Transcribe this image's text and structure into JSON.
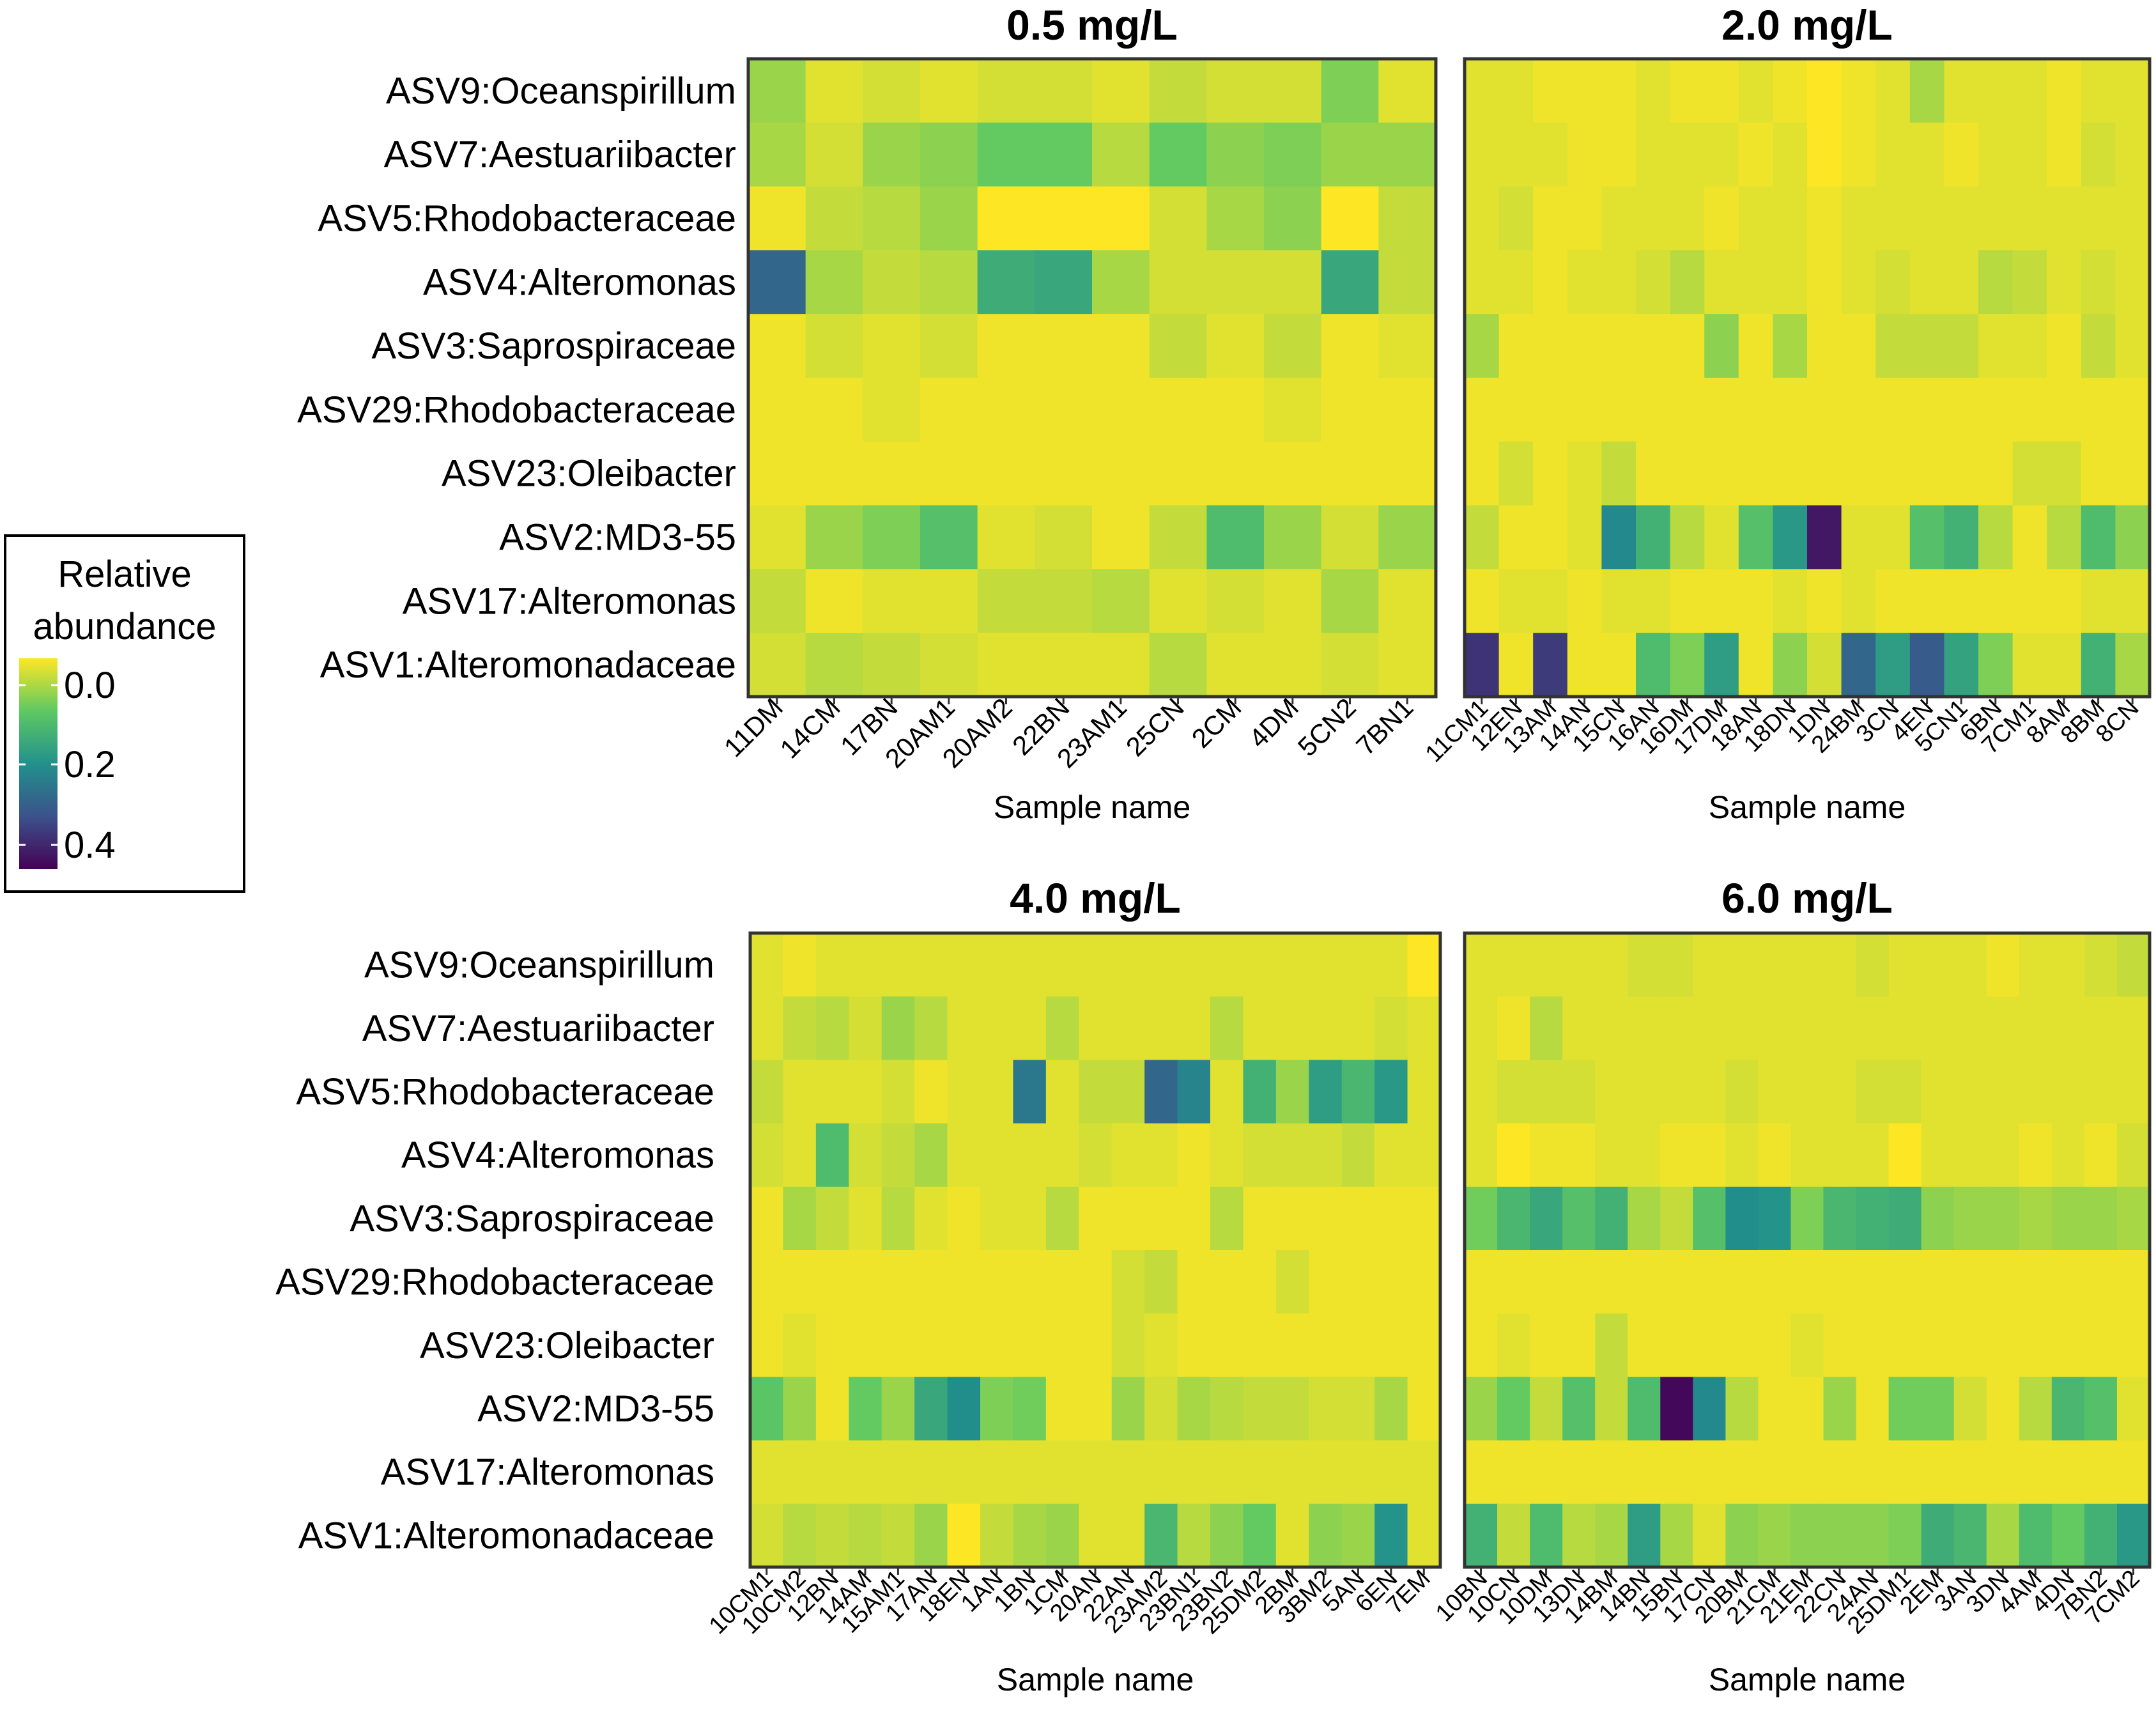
{
  "legend": {
    "title_line1": "Relative",
    "title_line2": "abundance",
    "ticks": [
      "0.0",
      "0.2",
      "0.4"
    ]
  },
  "chart_data": [
    {
      "type": "heatmap",
      "title": "0.5 mg/L",
      "xlabel": "Sample name",
      "ylabel": "",
      "zlim": [
        0,
        0.45
      ],
      "y_labels": [
        "ASV9:Oceanspirillum",
        "ASV7:Aestuariibacter",
        "ASV5:Rhodobacteraceae",
        "ASV4:Alteromonas",
        "ASV3:Saprospiraceae",
        "ASV29:Rhodobacteraceae",
        "ASV23:Oleibacter",
        "ASV2:MD3-55",
        "ASV17:Alteromonas",
        "ASV1:Alteromonadaceae"
      ],
      "x_labels": [
        "11DM",
        "14CM",
        "17BN",
        "20AM1",
        "20AM2",
        "22BN",
        "23AM1",
        "25CN",
        "2CM",
        "4DM",
        "5CN2",
        "7BN1"
      ],
      "values": [
        [
          0.07,
          0.02,
          0.03,
          0.02,
          0.03,
          0.03,
          0.02,
          0.04,
          0.03,
          0.03,
          0.09,
          0.02
        ],
        [
          0.06,
          0.03,
          0.07,
          0.08,
          0.11,
          0.11,
          0.05,
          0.11,
          0.08,
          0.09,
          0.07,
          0.07
        ],
        [
          0.01,
          0.04,
          0.05,
          0.07,
          0.0,
          0.0,
          0.0,
          0.03,
          0.06,
          0.08,
          0.0,
          0.04
        ],
        [
          0.3,
          0.06,
          0.04,
          0.05,
          0.17,
          0.18,
          0.06,
          0.03,
          0.03,
          0.03,
          0.18,
          0.04
        ],
        [
          0.01,
          0.03,
          0.02,
          0.03,
          0.01,
          0.01,
          0.01,
          0.04,
          0.02,
          0.04,
          0.01,
          0.02
        ],
        [
          0.01,
          0.01,
          0.02,
          0.01,
          0.01,
          0.01,
          0.01,
          0.01,
          0.01,
          0.02,
          0.01,
          0.01
        ],
        [
          0.01,
          0.01,
          0.01,
          0.01,
          0.01,
          0.01,
          0.01,
          0.01,
          0.01,
          0.01,
          0.01,
          0.01
        ],
        [
          0.02,
          0.07,
          0.09,
          0.13,
          0.02,
          0.03,
          0.01,
          0.04,
          0.14,
          0.07,
          0.03,
          0.07
        ],
        [
          0.04,
          0.01,
          0.02,
          0.02,
          0.04,
          0.04,
          0.05,
          0.02,
          0.03,
          0.02,
          0.06,
          0.02
        ],
        [
          0.03,
          0.05,
          0.04,
          0.03,
          0.02,
          0.02,
          0.02,
          0.05,
          0.02,
          0.02,
          0.03,
          0.02
        ]
      ]
    },
    {
      "type": "heatmap",
      "title": "2.0 mg/L",
      "xlabel": "Sample name",
      "ylabel": "",
      "zlim": [
        0,
        0.45
      ],
      "y_labels": [
        "ASV9:Oceanspirillum",
        "ASV7:Aestuariibacter",
        "ASV5:Rhodobacteraceae",
        "ASV4:Alteromonas",
        "ASV3:Saprospiraceae",
        "ASV29:Rhodobacteraceae",
        "ASV23:Oleibacter",
        "ASV2:MD3-55",
        "ASV17:Alteromonas",
        "ASV1:Alteromonadaceae"
      ],
      "x_labels": [
        "11CM1",
        "12EN",
        "13AM",
        "14AN",
        "15CN",
        "16AN",
        "16DM",
        "17DM",
        "18AN",
        "18DN",
        "1DN",
        "24BM",
        "3CN",
        "4EN",
        "5CN1",
        "6BN",
        "7CM1",
        "8AM",
        "8BM",
        "8CN"
      ],
      "values": [
        [
          0.02,
          0.02,
          0.01,
          0.01,
          0.01,
          0.02,
          0.01,
          0.01,
          0.02,
          0.01,
          0.0,
          0.01,
          0.02,
          0.06,
          0.02,
          0.02,
          0.02,
          0.01,
          0.02,
          0.02
        ],
        [
          0.02,
          0.02,
          0.02,
          0.01,
          0.01,
          0.02,
          0.02,
          0.02,
          0.01,
          0.02,
          0.0,
          0.01,
          0.02,
          0.02,
          0.01,
          0.02,
          0.02,
          0.01,
          0.03,
          0.02
        ],
        [
          0.02,
          0.03,
          0.01,
          0.01,
          0.02,
          0.02,
          0.02,
          0.01,
          0.02,
          0.02,
          0.01,
          0.02,
          0.02,
          0.02,
          0.02,
          0.02,
          0.02,
          0.02,
          0.02,
          0.02
        ],
        [
          0.02,
          0.02,
          0.01,
          0.02,
          0.02,
          0.03,
          0.05,
          0.02,
          0.02,
          0.02,
          0.01,
          0.02,
          0.03,
          0.02,
          0.02,
          0.05,
          0.04,
          0.02,
          0.03,
          0.02
        ],
        [
          0.06,
          0.01,
          0.01,
          0.01,
          0.01,
          0.01,
          0.01,
          0.08,
          0.01,
          0.06,
          0.01,
          0.01,
          0.04,
          0.04,
          0.04,
          0.02,
          0.02,
          0.01,
          0.04,
          0.02
        ],
        [
          0.01,
          0.01,
          0.01,
          0.01,
          0.01,
          0.01,
          0.01,
          0.01,
          0.01,
          0.01,
          0.01,
          0.01,
          0.01,
          0.01,
          0.01,
          0.01,
          0.01,
          0.01,
          0.01,
          0.01
        ],
        [
          0.01,
          0.03,
          0.01,
          0.02,
          0.04,
          0.01,
          0.01,
          0.01,
          0.01,
          0.01,
          0.01,
          0.01,
          0.01,
          0.01,
          0.01,
          0.01,
          0.03,
          0.03,
          0.01,
          0.01
        ],
        [
          0.04,
          0.01,
          0.01,
          0.02,
          0.24,
          0.16,
          0.05,
          0.02,
          0.13,
          0.21,
          0.42,
          0.02,
          0.02,
          0.13,
          0.16,
          0.05,
          0.01,
          0.05,
          0.14,
          0.08
        ],
        [
          0.01,
          0.02,
          0.02,
          0.01,
          0.02,
          0.02,
          0.01,
          0.01,
          0.01,
          0.02,
          0.01,
          0.02,
          0.01,
          0.01,
          0.01,
          0.01,
          0.01,
          0.01,
          0.02,
          0.02
        ],
        [
          0.38,
          0.01,
          0.37,
          0.01,
          0.01,
          0.14,
          0.09,
          0.2,
          0.01,
          0.08,
          0.03,
          0.3,
          0.2,
          0.32,
          0.19,
          0.09,
          0.02,
          0.02,
          0.16,
          0.06
        ]
      ]
    },
    {
      "type": "heatmap",
      "title": "4.0 mg/L",
      "xlabel": "Sample name",
      "ylabel": "",
      "zlim": [
        0,
        0.45
      ],
      "y_labels": [
        "ASV9:Oceanspirillum",
        "ASV7:Aestuariibacter",
        "ASV5:Rhodobacteraceae",
        "ASV4:Alteromonas",
        "ASV3:Saprospiraceae",
        "ASV29:Rhodobacteraceae",
        "ASV23:Oleibacter",
        "ASV2:MD3-55",
        "ASV17:Alteromonas",
        "ASV1:Alteromonadaceae"
      ],
      "x_labels": [
        "10CM1",
        "10CM2",
        "12BN",
        "14AM",
        "15AM1",
        "17AN",
        "18EN",
        "1AN",
        "1BN",
        "1CM",
        "20AN",
        "22AN",
        "23AM2",
        "23BN1",
        "23BN2",
        "25DM2",
        "2BM",
        "3BM2",
        "5AN",
        "6EN",
        "7EM"
      ],
      "values": [
        [
          0.02,
          0.01,
          0.02,
          0.02,
          0.02,
          0.02,
          0.02,
          0.02,
          0.02,
          0.02,
          0.02,
          0.02,
          0.02,
          0.02,
          0.02,
          0.02,
          0.02,
          0.02,
          0.02,
          0.02,
          0.0
        ],
        [
          0.02,
          0.04,
          0.05,
          0.03,
          0.07,
          0.05,
          0.02,
          0.02,
          0.02,
          0.05,
          0.02,
          0.02,
          0.02,
          0.02,
          0.05,
          0.02,
          0.02,
          0.02,
          0.02,
          0.03,
          0.02
        ],
        [
          0.04,
          0.02,
          0.02,
          0.02,
          0.03,
          0.01,
          0.02,
          0.02,
          0.27,
          0.02,
          0.04,
          0.04,
          0.3,
          0.25,
          0.02,
          0.16,
          0.07,
          0.2,
          0.15,
          0.21,
          0.02
        ],
        [
          0.03,
          0.02,
          0.14,
          0.03,
          0.04,
          0.06,
          0.02,
          0.02,
          0.02,
          0.02,
          0.03,
          0.02,
          0.02,
          0.01,
          0.02,
          0.03,
          0.03,
          0.03,
          0.04,
          0.02,
          0.02
        ],
        [
          0.01,
          0.06,
          0.04,
          0.02,
          0.05,
          0.02,
          0.01,
          0.02,
          0.02,
          0.05,
          0.01,
          0.01,
          0.01,
          0.01,
          0.05,
          0.01,
          0.01,
          0.01,
          0.01,
          0.01,
          0.01
        ],
        [
          0.01,
          0.01,
          0.01,
          0.01,
          0.01,
          0.01,
          0.01,
          0.01,
          0.01,
          0.01,
          0.01,
          0.03,
          0.04,
          0.01,
          0.01,
          0.01,
          0.03,
          0.01,
          0.01,
          0.01,
          0.01
        ],
        [
          0.01,
          0.02,
          0.01,
          0.01,
          0.01,
          0.01,
          0.01,
          0.01,
          0.01,
          0.01,
          0.01,
          0.03,
          0.02,
          0.01,
          0.01,
          0.01,
          0.01,
          0.01,
          0.01,
          0.01,
          0.01
        ],
        [
          0.12,
          0.07,
          0.01,
          0.11,
          0.07,
          0.18,
          0.23,
          0.09,
          0.1,
          0.01,
          0.01,
          0.07,
          0.03,
          0.06,
          0.05,
          0.04,
          0.04,
          0.03,
          0.03,
          0.06,
          0.01
        ],
        [
          0.02,
          0.02,
          0.02,
          0.02,
          0.02,
          0.02,
          0.02,
          0.02,
          0.02,
          0.02,
          0.02,
          0.02,
          0.02,
          0.02,
          0.02,
          0.02,
          0.02,
          0.02,
          0.02,
          0.02,
          0.02
        ],
        [
          0.03,
          0.05,
          0.04,
          0.05,
          0.04,
          0.07,
          0.0,
          0.04,
          0.06,
          0.07,
          0.02,
          0.02,
          0.15,
          0.05,
          0.08,
          0.11,
          0.02,
          0.08,
          0.07,
          0.22,
          0.02
        ]
      ]
    },
    {
      "type": "heatmap",
      "title": "6.0 mg/L",
      "xlabel": "Sample name",
      "ylabel": "",
      "zlim": [
        0,
        0.45
      ],
      "y_labels": [
        "ASV9:Oceanspirillum",
        "ASV7:Aestuariibacter",
        "ASV5:Rhodobacteraceae",
        "ASV4:Alteromonas",
        "ASV3:Saprospiraceae",
        "ASV29:Rhodobacteraceae",
        "ASV23:Oleibacter",
        "ASV2:MD3-55",
        "ASV17:Alteromonas",
        "ASV1:Alteromonadaceae"
      ],
      "x_labels": [
        "10BN",
        "10CN",
        "10DM",
        "13DN",
        "14BM",
        "14BN",
        "15BN",
        "17CN",
        "20BM",
        "21CM",
        "21EM",
        "22CN",
        "24AN",
        "25DM1",
        "2EM",
        "3AN",
        "3DN",
        "4AM",
        "4DN",
        "7BN2",
        "7CM2"
      ],
      "values": [
        [
          0.02,
          0.02,
          0.02,
          0.02,
          0.02,
          0.03,
          0.03,
          0.02,
          0.02,
          0.02,
          0.02,
          0.02,
          0.03,
          0.02,
          0.02,
          0.02,
          0.01,
          0.02,
          0.02,
          0.03,
          0.04
        ],
        [
          0.02,
          0.01,
          0.05,
          0.02,
          0.02,
          0.02,
          0.02,
          0.02,
          0.02,
          0.02,
          0.02,
          0.02,
          0.02,
          0.02,
          0.02,
          0.02,
          0.02,
          0.02,
          0.02,
          0.02,
          0.02
        ],
        [
          0.02,
          0.03,
          0.03,
          0.03,
          0.02,
          0.02,
          0.02,
          0.02,
          0.03,
          0.02,
          0.02,
          0.02,
          0.03,
          0.03,
          0.02,
          0.02,
          0.02,
          0.02,
          0.02,
          0.02,
          0.02
        ],
        [
          0.02,
          0.0,
          0.01,
          0.01,
          0.02,
          0.02,
          0.01,
          0.01,
          0.02,
          0.01,
          0.02,
          0.02,
          0.02,
          0.0,
          0.02,
          0.02,
          0.02,
          0.01,
          0.02,
          0.01,
          0.03
        ],
        [
          0.1,
          0.15,
          0.18,
          0.13,
          0.16,
          0.06,
          0.04,
          0.13,
          0.23,
          0.22,
          0.09,
          0.15,
          0.16,
          0.17,
          0.08,
          0.07,
          0.07,
          0.06,
          0.07,
          0.07,
          0.06
        ],
        [
          0.01,
          0.01,
          0.01,
          0.01,
          0.01,
          0.01,
          0.01,
          0.01,
          0.01,
          0.01,
          0.01,
          0.01,
          0.01,
          0.01,
          0.01,
          0.01,
          0.01,
          0.01,
          0.01,
          0.01,
          0.01
        ],
        [
          0.01,
          0.02,
          0.01,
          0.01,
          0.04,
          0.01,
          0.01,
          0.01,
          0.01,
          0.01,
          0.02,
          0.01,
          0.01,
          0.01,
          0.01,
          0.01,
          0.01,
          0.01,
          0.01,
          0.01,
          0.01
        ],
        [
          0.07,
          0.11,
          0.04,
          0.13,
          0.04,
          0.14,
          0.44,
          0.24,
          0.05,
          0.01,
          0.01,
          0.07,
          0.01,
          0.1,
          0.1,
          0.03,
          0.01,
          0.05,
          0.15,
          0.13,
          0.02
        ],
        [
          0.01,
          0.01,
          0.01,
          0.01,
          0.01,
          0.01,
          0.01,
          0.01,
          0.01,
          0.01,
          0.01,
          0.01,
          0.01,
          0.01,
          0.01,
          0.01,
          0.01,
          0.01,
          0.01,
          0.01,
          0.01
        ],
        [
          0.16,
          0.04,
          0.14,
          0.05,
          0.06,
          0.2,
          0.06,
          0.02,
          0.08,
          0.07,
          0.08,
          0.08,
          0.08,
          0.09,
          0.17,
          0.15,
          0.06,
          0.14,
          0.11,
          0.16,
          0.21
        ]
      ]
    }
  ]
}
